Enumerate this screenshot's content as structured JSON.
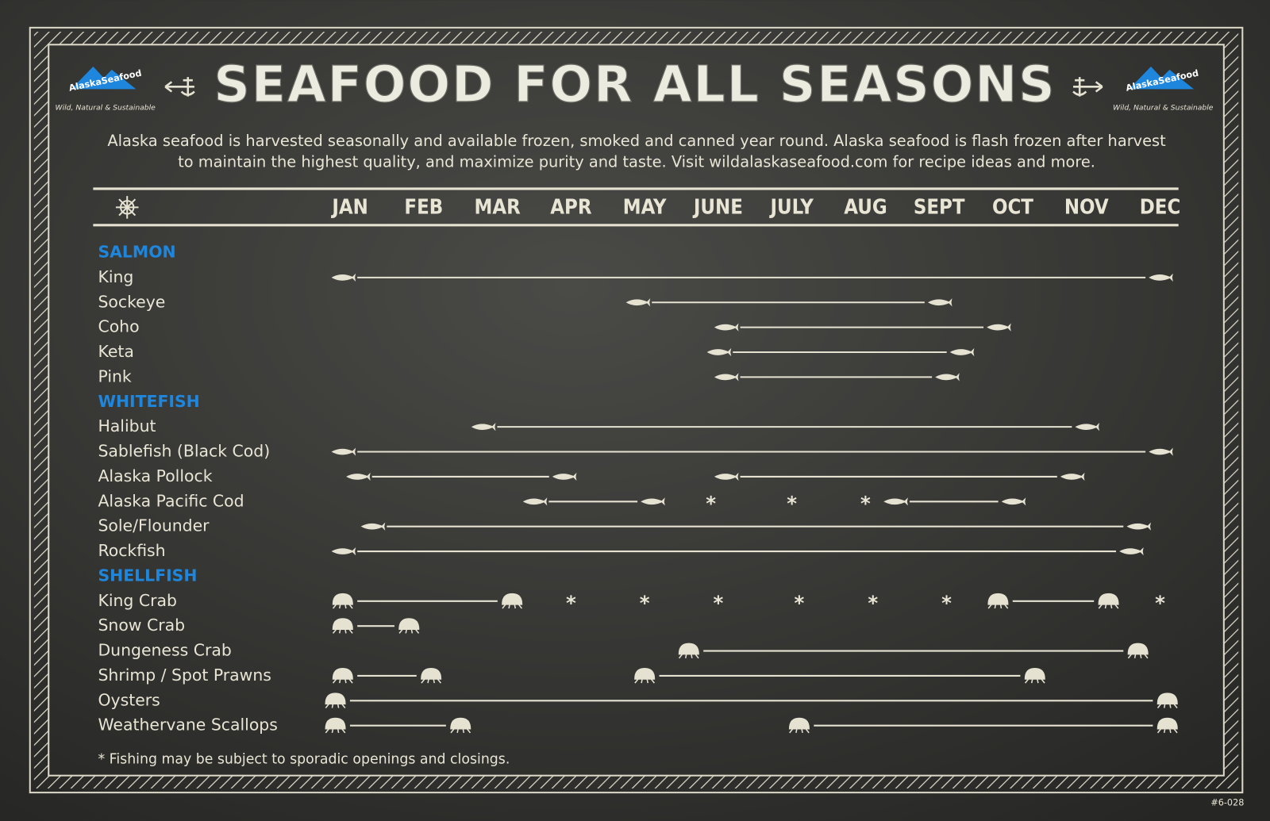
{
  "chart_data": {
    "type": "range",
    "title": "SEAFOOD FOR ALL SEASONS",
    "subtitle": [
      "Alaska seafood is harvested seasonally and available frozen, smoked and canned year round. Alaska seafood is flash frozen after harvest",
      "to maintain the highest quality, and maximize purity and taste. Visit wildalaskaseafood.com for recipe ideas and more."
    ],
    "logo": "AlaskaSeafood",
    "tagline": "Wild, Natural & Sustainable",
    "footnote": "* Fishing may be subject to sporadic openings and closings.",
    "code": "#6-028",
    "asterisk": "*",
    "color": "#e6e2d2",
    "group_color": "#1e86dc",
    "xlim": [
      0.7,
      12.25
    ],
    "xticks": [
      {
        "value": 1,
        "label": "JAN"
      },
      {
        "value": 2,
        "label": "FEB"
      },
      {
        "value": 3,
        "label": "MAR"
      },
      {
        "value": 4,
        "label": "APR"
      },
      {
        "value": 5,
        "label": "MAY"
      },
      {
        "value": 6,
        "label": "JUNE"
      },
      {
        "value": 7,
        "label": "JULY"
      },
      {
        "value": 8,
        "label": "AUG"
      },
      {
        "value": 9,
        "label": "SEPT"
      },
      {
        "value": 10,
        "label": "OCT"
      },
      {
        "value": 11,
        "label": "NOV"
      },
      {
        "value": 12,
        "label": "DEC"
      }
    ],
    "groups": [
      {
        "name": "SALMON",
        "icon": "fish",
        "rows": [
          {
            "name": "King",
            "segments": [
              [
                0.9,
                12.0
              ]
            ],
            "asterisks": []
          },
          {
            "name": "Sockeye",
            "segments": [
              [
                4.9,
                9.0
              ]
            ],
            "asterisks": []
          },
          {
            "name": "Coho",
            "segments": [
              [
                6.1,
                9.8
              ]
            ],
            "asterisks": []
          },
          {
            "name": "Keta",
            "segments": [
              [
                6.0,
                9.3
              ]
            ],
            "asterisks": []
          },
          {
            "name": "Pink",
            "segments": [
              [
                6.1,
                9.1
              ]
            ],
            "asterisks": []
          }
        ]
      },
      {
        "name": "WHITEFISH",
        "icon": "fish",
        "rows": [
          {
            "name": "Halibut",
            "segments": [
              [
                2.8,
                11.0
              ]
            ],
            "asterisks": []
          },
          {
            "name": "Sablefish (Black Cod)",
            "segments": [
              [
                0.9,
                12.0
              ]
            ],
            "asterisks": []
          },
          {
            "name": "Alaska Pollock",
            "segments": [
              [
                1.1,
                3.9
              ],
              [
                6.1,
                10.8
              ]
            ],
            "asterisks": []
          },
          {
            "name": "Alaska Pacific Cod",
            "segments": [
              [
                3.5,
                5.1
              ],
              [
                8.4,
                10.0
              ]
            ],
            "asterisks": [
              5.9,
              7.0,
              8.0
            ]
          },
          {
            "name": "Sole/Flounder",
            "segments": [
              [
                1.3,
                11.7
              ]
            ],
            "asterisks": []
          },
          {
            "name": "Rockfish",
            "segments": [
              [
                0.9,
                11.6
              ]
            ],
            "asterisks": []
          }
        ]
      },
      {
        "name": "SHELLFISH",
        "icon": "shell",
        "rows": [
          {
            "name": "King Crab",
            "segments": [
              [
                0.9,
                3.2
              ],
              [
                9.8,
                11.3
              ]
            ],
            "asterisks": [
              4.0,
              5.0,
              6.0,
              7.1,
              8.1,
              9.1,
              12.0
            ]
          },
          {
            "name": "Snow Crab",
            "segments": [
              [
                0.9,
                1.8
              ]
            ],
            "asterisks": []
          },
          {
            "name": "Dungeness Crab",
            "segments": [
              [
                5.6,
                11.7
              ]
            ],
            "asterisks": []
          },
          {
            "name": "Shrimp / Spot Prawns",
            "segments": [
              [
                0.9,
                2.1
              ],
              [
                5.0,
                10.3
              ]
            ],
            "asterisks": []
          },
          {
            "name": "Oysters",
            "segments": [
              [
                0.8,
                12.1
              ]
            ],
            "asterisks": []
          },
          {
            "name": "Weathervane Scallops",
            "segments": [
              [
                0.8,
                2.5
              ],
              [
                7.1,
                12.1
              ]
            ],
            "asterisks": []
          }
        ]
      }
    ]
  }
}
